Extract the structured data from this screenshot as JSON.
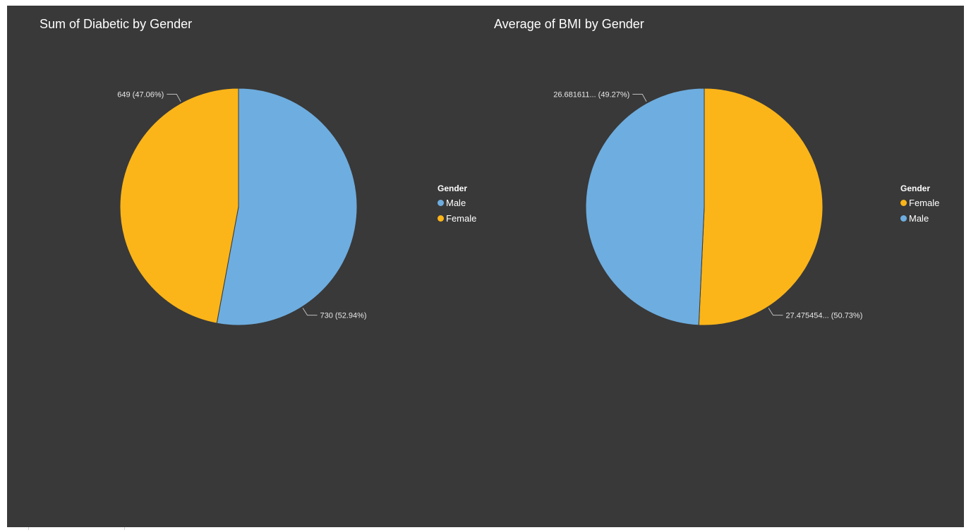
{
  "colors": {
    "Male": "#6eaddf",
    "Female": "#fbb519",
    "label": "#e6e6e6",
    "leader": "#bdbdbd"
  },
  "chart_data": [
    {
      "type": "pie",
      "title": "Sum of Diabetic by Gender",
      "legend_title": "Gender",
      "legend_placement": "right",
      "slices": [
        {
          "label": "Male",
          "value": 730,
          "percent": 52.94,
          "data_label": "730 (52.94%)"
        },
        {
          "label": "Female",
          "value": 649,
          "percent": 47.06,
          "data_label": "649 (47.06%)"
        }
      ]
    },
    {
      "type": "pie",
      "title": "Average of BMI by Gender",
      "legend_title": "Gender",
      "legend_placement": "right",
      "slices": [
        {
          "label": "Female",
          "value": 27.475454,
          "percent": 50.73,
          "data_label": "27.475454... (50.73%)"
        },
        {
          "label": "Male",
          "value": 26.681611,
          "percent": 49.27,
          "data_label": "26.681611... (49.27%)"
        }
      ]
    }
  ]
}
